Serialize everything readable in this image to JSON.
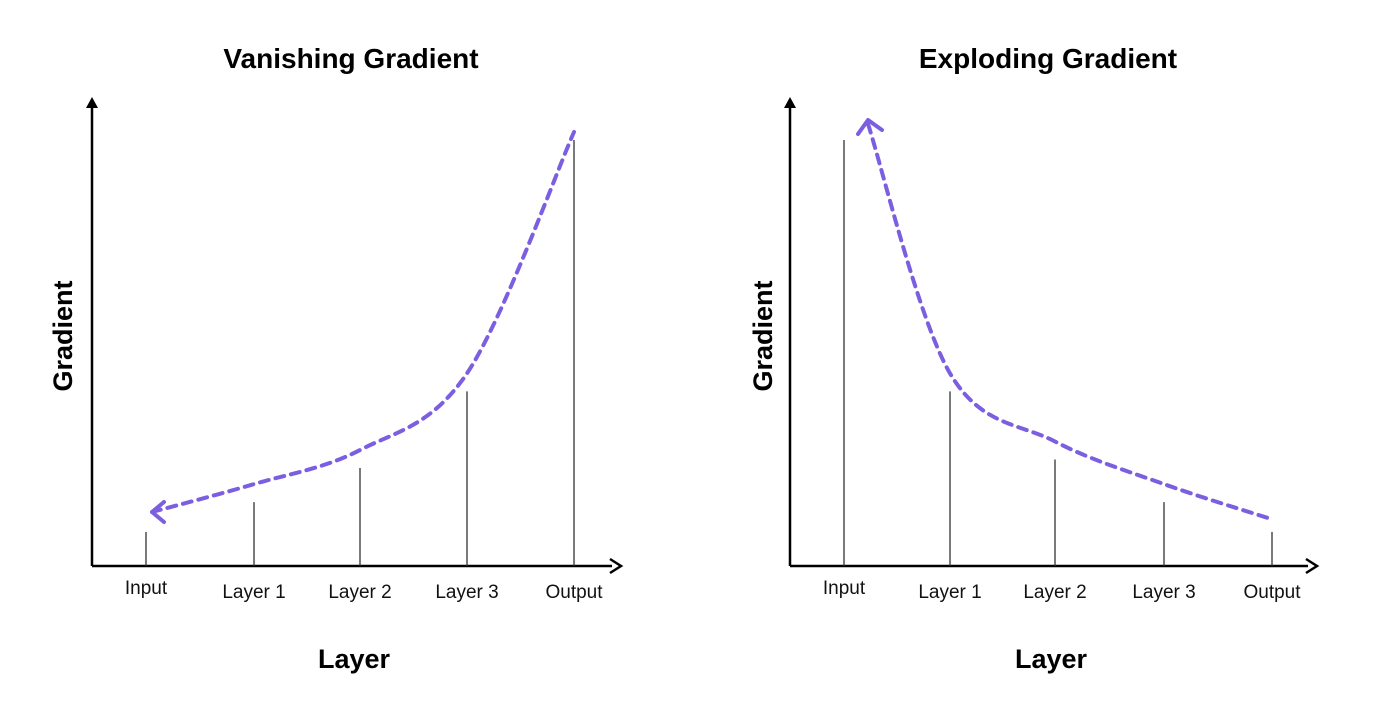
{
  "colors": {
    "curve": "#7B5FE0",
    "axis": "#000000",
    "bar": "#333333"
  },
  "chart_data": [
    {
      "type": "line",
      "title": "Vanishing Gradient",
      "xlabel": "Layer",
      "ylabel": "Gradient",
      "categories": [
        "Input",
        "Layer 1",
        "Layer 2",
        "Layer 3",
        "Output"
      ],
      "values": [
        0.08,
        0.15,
        0.23,
        0.41,
        1.0
      ],
      "ylim": [
        0,
        1.05
      ],
      "curve_style": "dashed",
      "arrow_direction": "toward-input",
      "grid": false,
      "legend": "none"
    },
    {
      "type": "line",
      "title": "Exploding Gradient",
      "xlabel": "Layer",
      "ylabel": "Gradient",
      "categories": [
        "Input",
        "Layer 1",
        "Layer 2",
        "Layer 3",
        "Output"
      ],
      "values": [
        1.0,
        0.41,
        0.25,
        0.15,
        0.08
      ],
      "ylim": [
        0,
        1.05
      ],
      "curve_style": "dashed",
      "arrow_direction": "toward-input",
      "grid": false,
      "legend": "none"
    }
  ]
}
